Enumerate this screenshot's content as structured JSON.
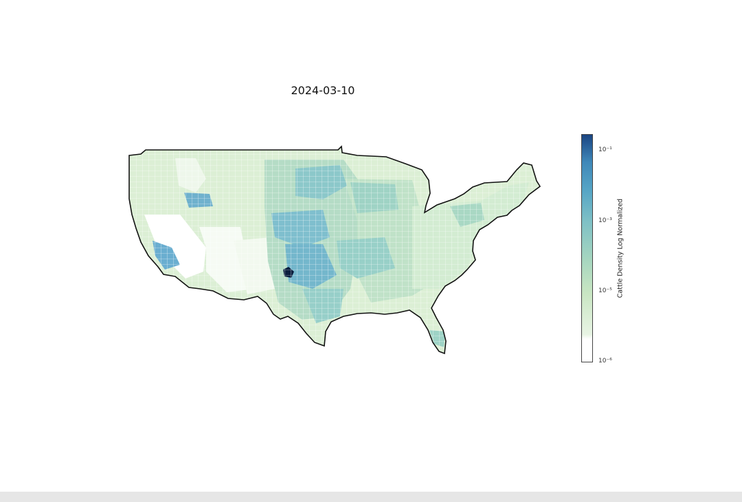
{
  "title": "2024-03-10",
  "colorbar": {
    "label": "Cattle Density Log Normalized",
    "ticks": [
      "10⁻¹",
      "10⁻³",
      "10⁻⁵",
      "10⁻⁶"
    ],
    "colors": [
      "#ffffff",
      "#e8f4e4",
      "#c9e6c3",
      "#a6d6bf",
      "#7ec0c6",
      "#57a6c6",
      "#3f88b9",
      "#2a66a2",
      "#1b4582"
    ]
  },
  "colors": {
    "land_low": "#dff0d6",
    "land_mid": "#b9dfc4",
    "land_high": "#7fbfce",
    "hotspot": "#3d8fbf",
    "max": "#0b1f3f",
    "outline": "#111111"
  }
}
